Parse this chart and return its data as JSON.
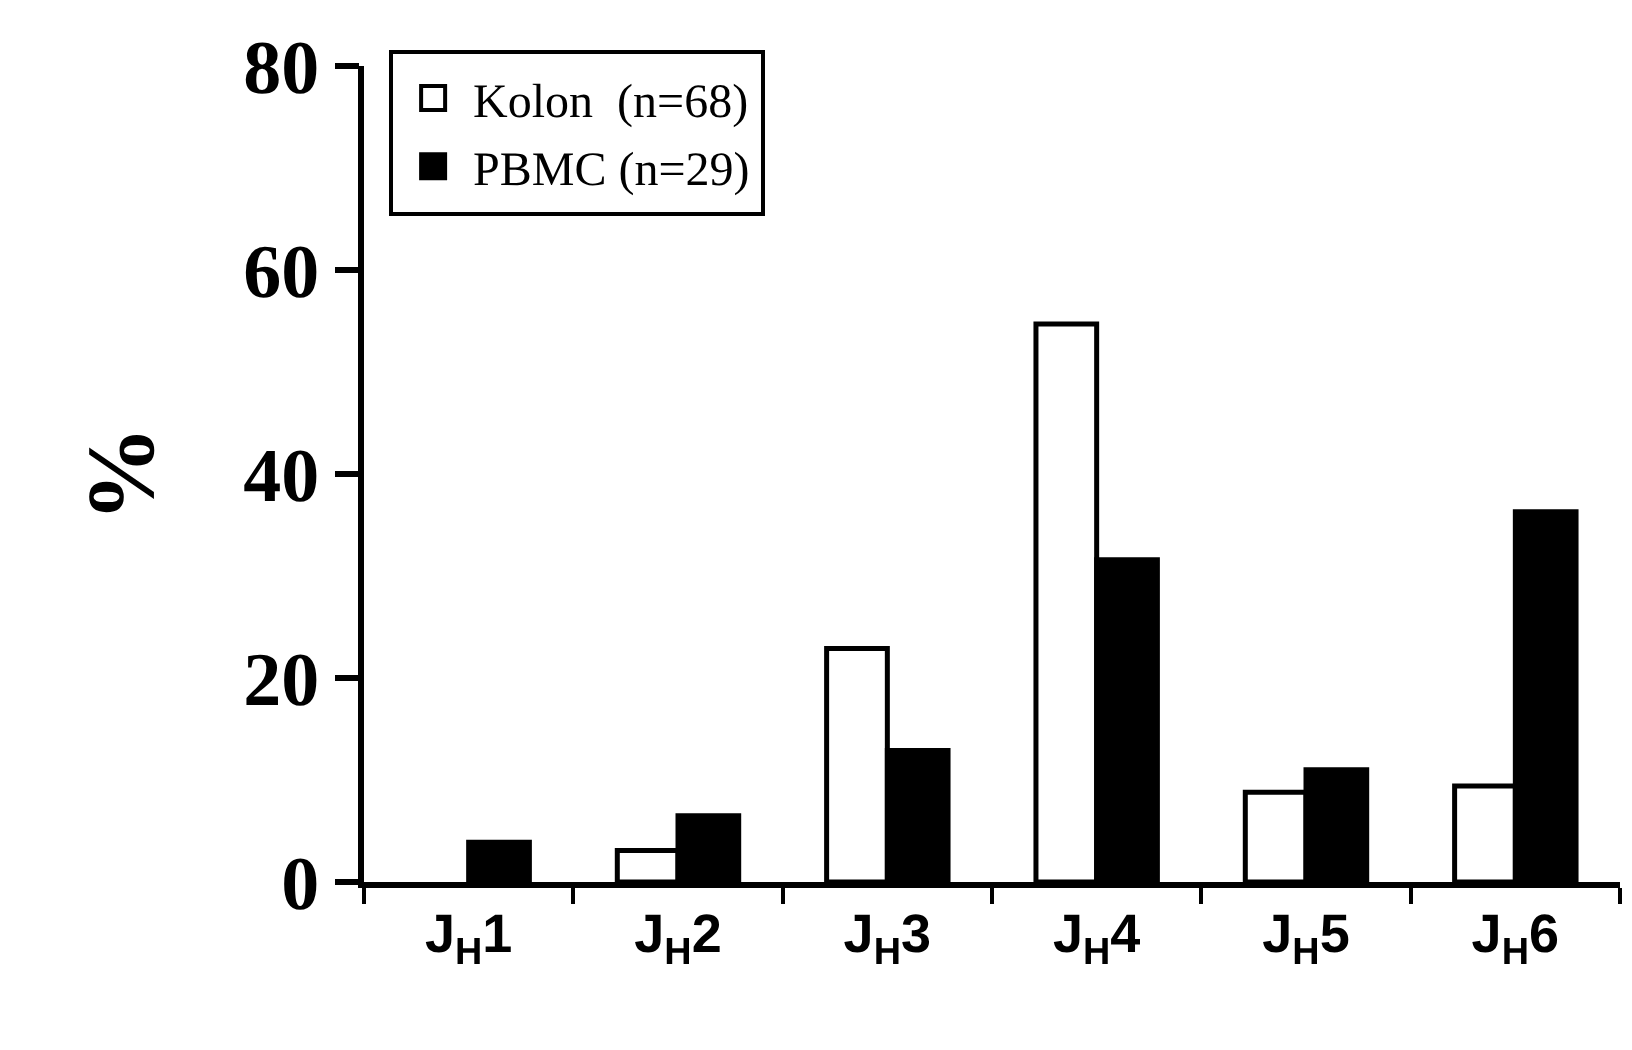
{
  "chart_data": {
    "type": "bar",
    "ylabel": "%",
    "categories": [
      "J$_{H}$1",
      "J$_{H}$2",
      "J$_{H}$3",
      "J$_{H}$4",
      "J$_{H}$5",
      "J$_{H}$6"
    ],
    "series": [
      {
        "name": "Kolon  (n=68)",
        "color": "#ffffff",
        "values": [
          0,
          3.1,
          22.9,
          54.7,
          8.8,
          9.4
        ]
      },
      {
        "name": "PBMC (n=29)",
        "color": "#000000",
        "values": [
          3.9,
          6.5,
          12.9,
          31.6,
          11,
          36.3
        ]
      }
    ],
    "ylim": [
      0,
      80
    ],
    "yticks": [
      0,
      20,
      40,
      60,
      80
    ],
    "grid": false,
    "legend": "top left"
  }
}
